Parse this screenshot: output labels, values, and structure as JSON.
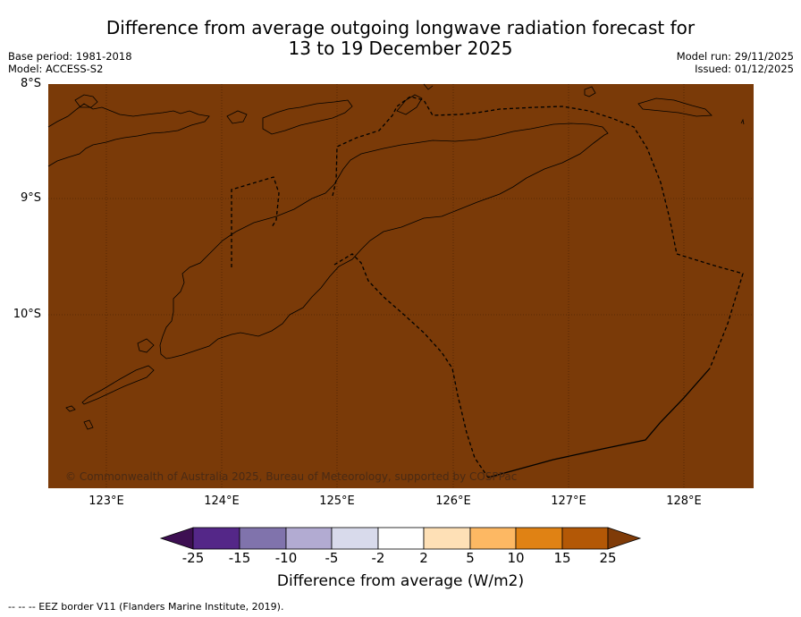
{
  "header": {
    "title_line1": "Difference from average outgoing longwave radiation forecast for",
    "title_line2": "13 to 19 December 2025",
    "base_period": "Base period: 1981-2018",
    "model": "Model: ACCESS-S2",
    "model_run": "Model run: 29/11/2025",
    "issued": "Issued: 01/12/2025"
  },
  "map": {
    "fill_color": "#7a3a08",
    "line_color": "#000000",
    "grid_color": "#3d1a02",
    "lat_labels": [
      "8°S",
      "9°S",
      "10°S"
    ],
    "lon_labels": [
      "123°E",
      "124°E",
      "125°E",
      "126°E",
      "127°E",
      "128°E"
    ],
    "copyright": "© Commonwealth of Australia 2025, Bureau of Meteorology, supported by COSPPac"
  },
  "colorbar": {
    "ticks": [
      "-25",
      "-15",
      "-10",
      "-5",
      "-2",
      "2",
      "5",
      "10",
      "15",
      "25"
    ],
    "colors": [
      "#3d0f52",
      "#542788",
      "#8073ac",
      "#b2abd2",
      "#d8daeb",
      "#ffffff",
      "#fee0b6",
      "#fdb863",
      "#e08214",
      "#b35806",
      "#7f3b08"
    ],
    "label": "Difference from average (W/m2)"
  },
  "footnote": "--  --  -- EEZ border V11 (Flanders Marine Institute, 2019)."
}
